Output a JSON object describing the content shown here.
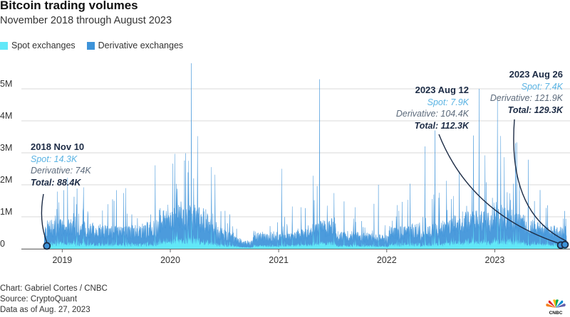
{
  "header": {
    "title": "Bitcoin trading volumes",
    "subtitle": "November 2018 through August 2023"
  },
  "legend": {
    "spot_label": "Spot exchanges",
    "derivative_label": "Derivative exchanges"
  },
  "colors": {
    "spot": "#62e8f8",
    "derivative": "#3d93d9",
    "annotation_dark": "#1c2b45",
    "annotation_spot": "#5ab3e3",
    "grid": "#d9d9d9"
  },
  "annotations": [
    {
      "date": "2018 Nov 10",
      "spot": "Spot: 14.3K",
      "derivative": "Derivative: 74K",
      "total": "Total: 88.4K"
    },
    {
      "date": "2023 Aug 12",
      "spot": "Spot: 7.9K",
      "derivative": "Derivative: 104.4K",
      "total": "Total: 112.3K"
    },
    {
      "date": "2023 Aug 26",
      "spot": "Spot: 7.4K",
      "derivative": "Derivative: 121.9K",
      "total": "Total: 129.3K"
    }
  ],
  "footer": {
    "credit": "Chart: Gabriel Cortes / CNBC",
    "source": "Source: CryptoQuant",
    "asof": "Data as of Aug. 27, 2023"
  },
  "logo_icon": "cnbc-peacock-icon",
  "chart_data": {
    "type": "area",
    "title": "Bitcoin trading volumes",
    "subtitle": "November 2018 through August 2023",
    "x_range": [
      "2018-11-01",
      "2023-08-31"
    ],
    "ylim": [
      0,
      5500000
    ],
    "yticks": [
      0,
      1000000,
      2000000,
      3000000,
      4000000,
      5000000
    ],
    "ytick_labels": [
      "0",
      "1M",
      "2M",
      "3M",
      "4M",
      "5M"
    ],
    "xtick_labels": [
      "2019",
      "2020",
      "2021",
      "2022",
      "2023"
    ],
    "xtick_dates": [
      "2019-01-01",
      "2020-01-01",
      "2021-01-01",
      "2022-01-01",
      "2023-01-01"
    ],
    "grid": true,
    "legend_position": "top-left",
    "stacked": true,
    "series": [
      {
        "name": "Spot exchanges",
        "values_note": "daily"
      },
      {
        "name": "Derivative exchanges",
        "values_note": "daily"
      }
    ],
    "approx_values": [
      {
        "date": "2018-11-10",
        "spot": 14300,
        "derivative": 74000,
        "total": 88400
      },
      {
        "date": "2019-06-25",
        "total": 1500000
      },
      {
        "date": "2020-03-12",
        "total": 5800000
      },
      {
        "date": "2020-03-20",
        "total": 2200000
      },
      {
        "date": "2021-01-11",
        "total": 2500000
      },
      {
        "date": "2021-05-19",
        "total": 5300000
      },
      {
        "date": "2021-12-04",
        "total": 2000000
      },
      {
        "date": "2022-05-10",
        "total": 3200000
      },
      {
        "date": "2022-06-13",
        "total": 3700000
      },
      {
        "date": "2022-11-09",
        "total": 5000000
      },
      {
        "date": "2023-03-12",
        "total": 3300000
      },
      {
        "date": "2023-08-12",
        "spot": 7900,
        "derivative": 104400,
        "total": 112300
      },
      {
        "date": "2023-08-26",
        "spot": 7400,
        "derivative": 121900,
        "total": 129300
      }
    ],
    "annotated_points": [
      {
        "date": "2018-11-10",
        "total": 88400
      },
      {
        "date": "2023-08-12",
        "total": 112300
      },
      {
        "date": "2023-08-26",
        "total": 129300
      }
    ]
  }
}
